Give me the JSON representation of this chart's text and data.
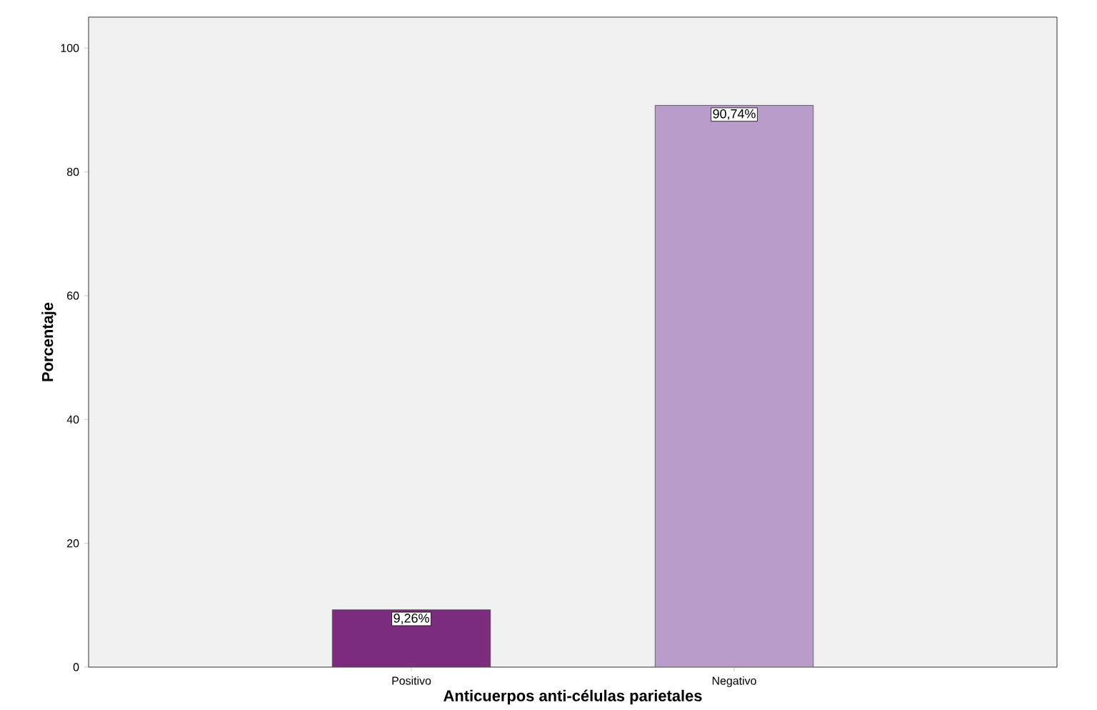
{
  "chart_data": {
    "type": "bar",
    "xlabel": "Anticuerpos anti-células parietales",
    "ylabel": "Porcentaje",
    "categories": [
      "Positivo",
      "Negativo"
    ],
    "values": [
      9.26,
      90.74
    ],
    "colors": [
      "#7b2c7d",
      "#b99cca"
    ],
    "value_labels": [
      "9,26%",
      "90,74%"
    ],
    "ylim": [
      0,
      105
    ],
    "yticks": [
      0,
      20,
      40,
      60,
      80,
      100
    ],
    "grid": false
  }
}
